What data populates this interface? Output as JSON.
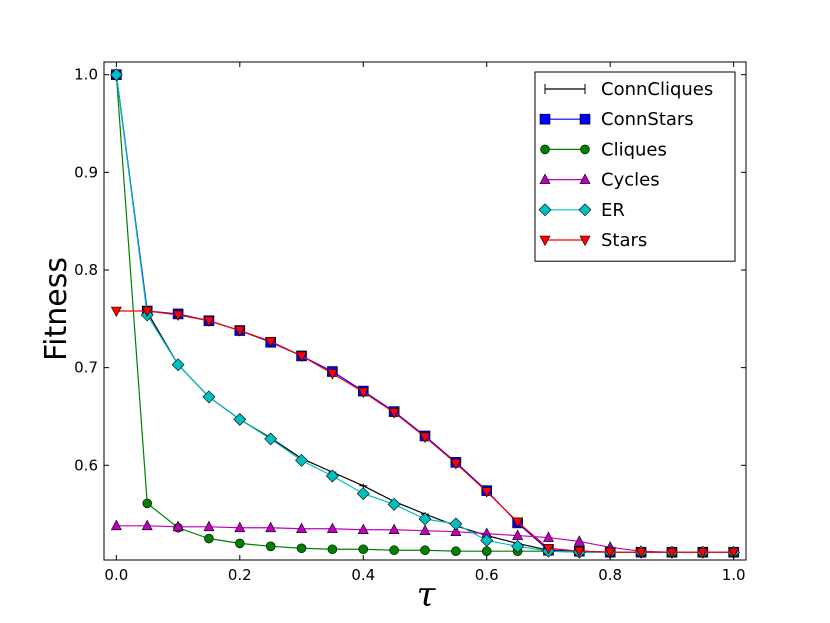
{
  "chart_data": {
    "type": "line",
    "title": "",
    "xlabel": "τ",
    "ylabel": "Fitness",
    "xlim": [
      -0.02,
      1.02
    ],
    "ylim": [
      0.503,
      1.013
    ],
    "grid": false,
    "legend_position": "top-right",
    "x_ticks": [
      "0.0",
      "0.2",
      "0.4",
      "0.6",
      "0.8",
      "1.0"
    ],
    "y_ticks": [
      "0.6",
      "0.7",
      "0.8",
      "0.9",
      "1.0"
    ],
    "x": [
      0.0,
      0.05,
      0.1,
      0.15,
      0.2,
      0.25,
      0.3,
      0.35,
      0.4,
      0.45,
      0.5,
      0.55,
      0.6,
      0.65,
      0.7,
      0.75,
      0.8,
      0.85,
      0.9,
      0.95,
      1.0
    ],
    "series": [
      {
        "name": "ConnCliques",
        "color": "#000000",
        "marker": "errorbar",
        "values": [
          1.0,
          0.757,
          0.703,
          0.67,
          0.647,
          0.628,
          0.607,
          0.593,
          0.579,
          0.563,
          0.55,
          0.538,
          0.528,
          0.52,
          0.513,
          0.512,
          0.511,
          0.511,
          0.511,
          0.511,
          0.511
        ]
      },
      {
        "name": "ConnStars",
        "color": "#0000ff",
        "marker": "square",
        "values": [
          1.0,
          0.758,
          0.755,
          0.748,
          0.738,
          0.726,
          0.712,
          0.696,
          0.676,
          0.655,
          0.63,
          0.603,
          0.574,
          0.541,
          0.513,
          0.512,
          0.511,
          0.511,
          0.511,
          0.511,
          0.511
        ]
      },
      {
        "name": "Cliques",
        "color": "#008000",
        "marker": "circle",
        "values": [
          1.0,
          0.561,
          0.536,
          0.525,
          0.52,
          0.517,
          0.515,
          0.514,
          0.514,
          0.513,
          0.513,
          0.512,
          0.512,
          0.512,
          0.512,
          0.511,
          0.511,
          0.511,
          0.511,
          0.511,
          0.511
        ]
      },
      {
        "name": "Cycles",
        "color": "#bf00bf",
        "marker": "triangle-up",
        "values": [
          0.538,
          0.538,
          0.537,
          0.537,
          0.536,
          0.536,
          0.535,
          0.535,
          0.534,
          0.534,
          0.533,
          0.532,
          0.53,
          0.528,
          0.526,
          0.522,
          0.516,
          0.512,
          0.511,
          0.511,
          0.511
        ]
      },
      {
        "name": "ER",
        "color": "#00bfbf",
        "marker": "diamond",
        "values": [
          1.0,
          0.754,
          0.703,
          0.67,
          0.647,
          0.627,
          0.605,
          0.589,
          0.571,
          0.56,
          0.545,
          0.54,
          0.523,
          0.517,
          0.512,
          0.511,
          0.511,
          0.511,
          0.511,
          0.511,
          0.511
        ]
      },
      {
        "name": "Stars",
        "color": "#ff0000",
        "marker": "triangle-down",
        "values": [
          0.758,
          0.758,
          0.754,
          0.748,
          0.738,
          0.727,
          0.712,
          0.694,
          0.675,
          0.654,
          0.629,
          0.602,
          0.573,
          0.542,
          0.515,
          0.512,
          0.511,
          0.511,
          0.511,
          0.511,
          0.511
        ]
      }
    ]
  }
}
